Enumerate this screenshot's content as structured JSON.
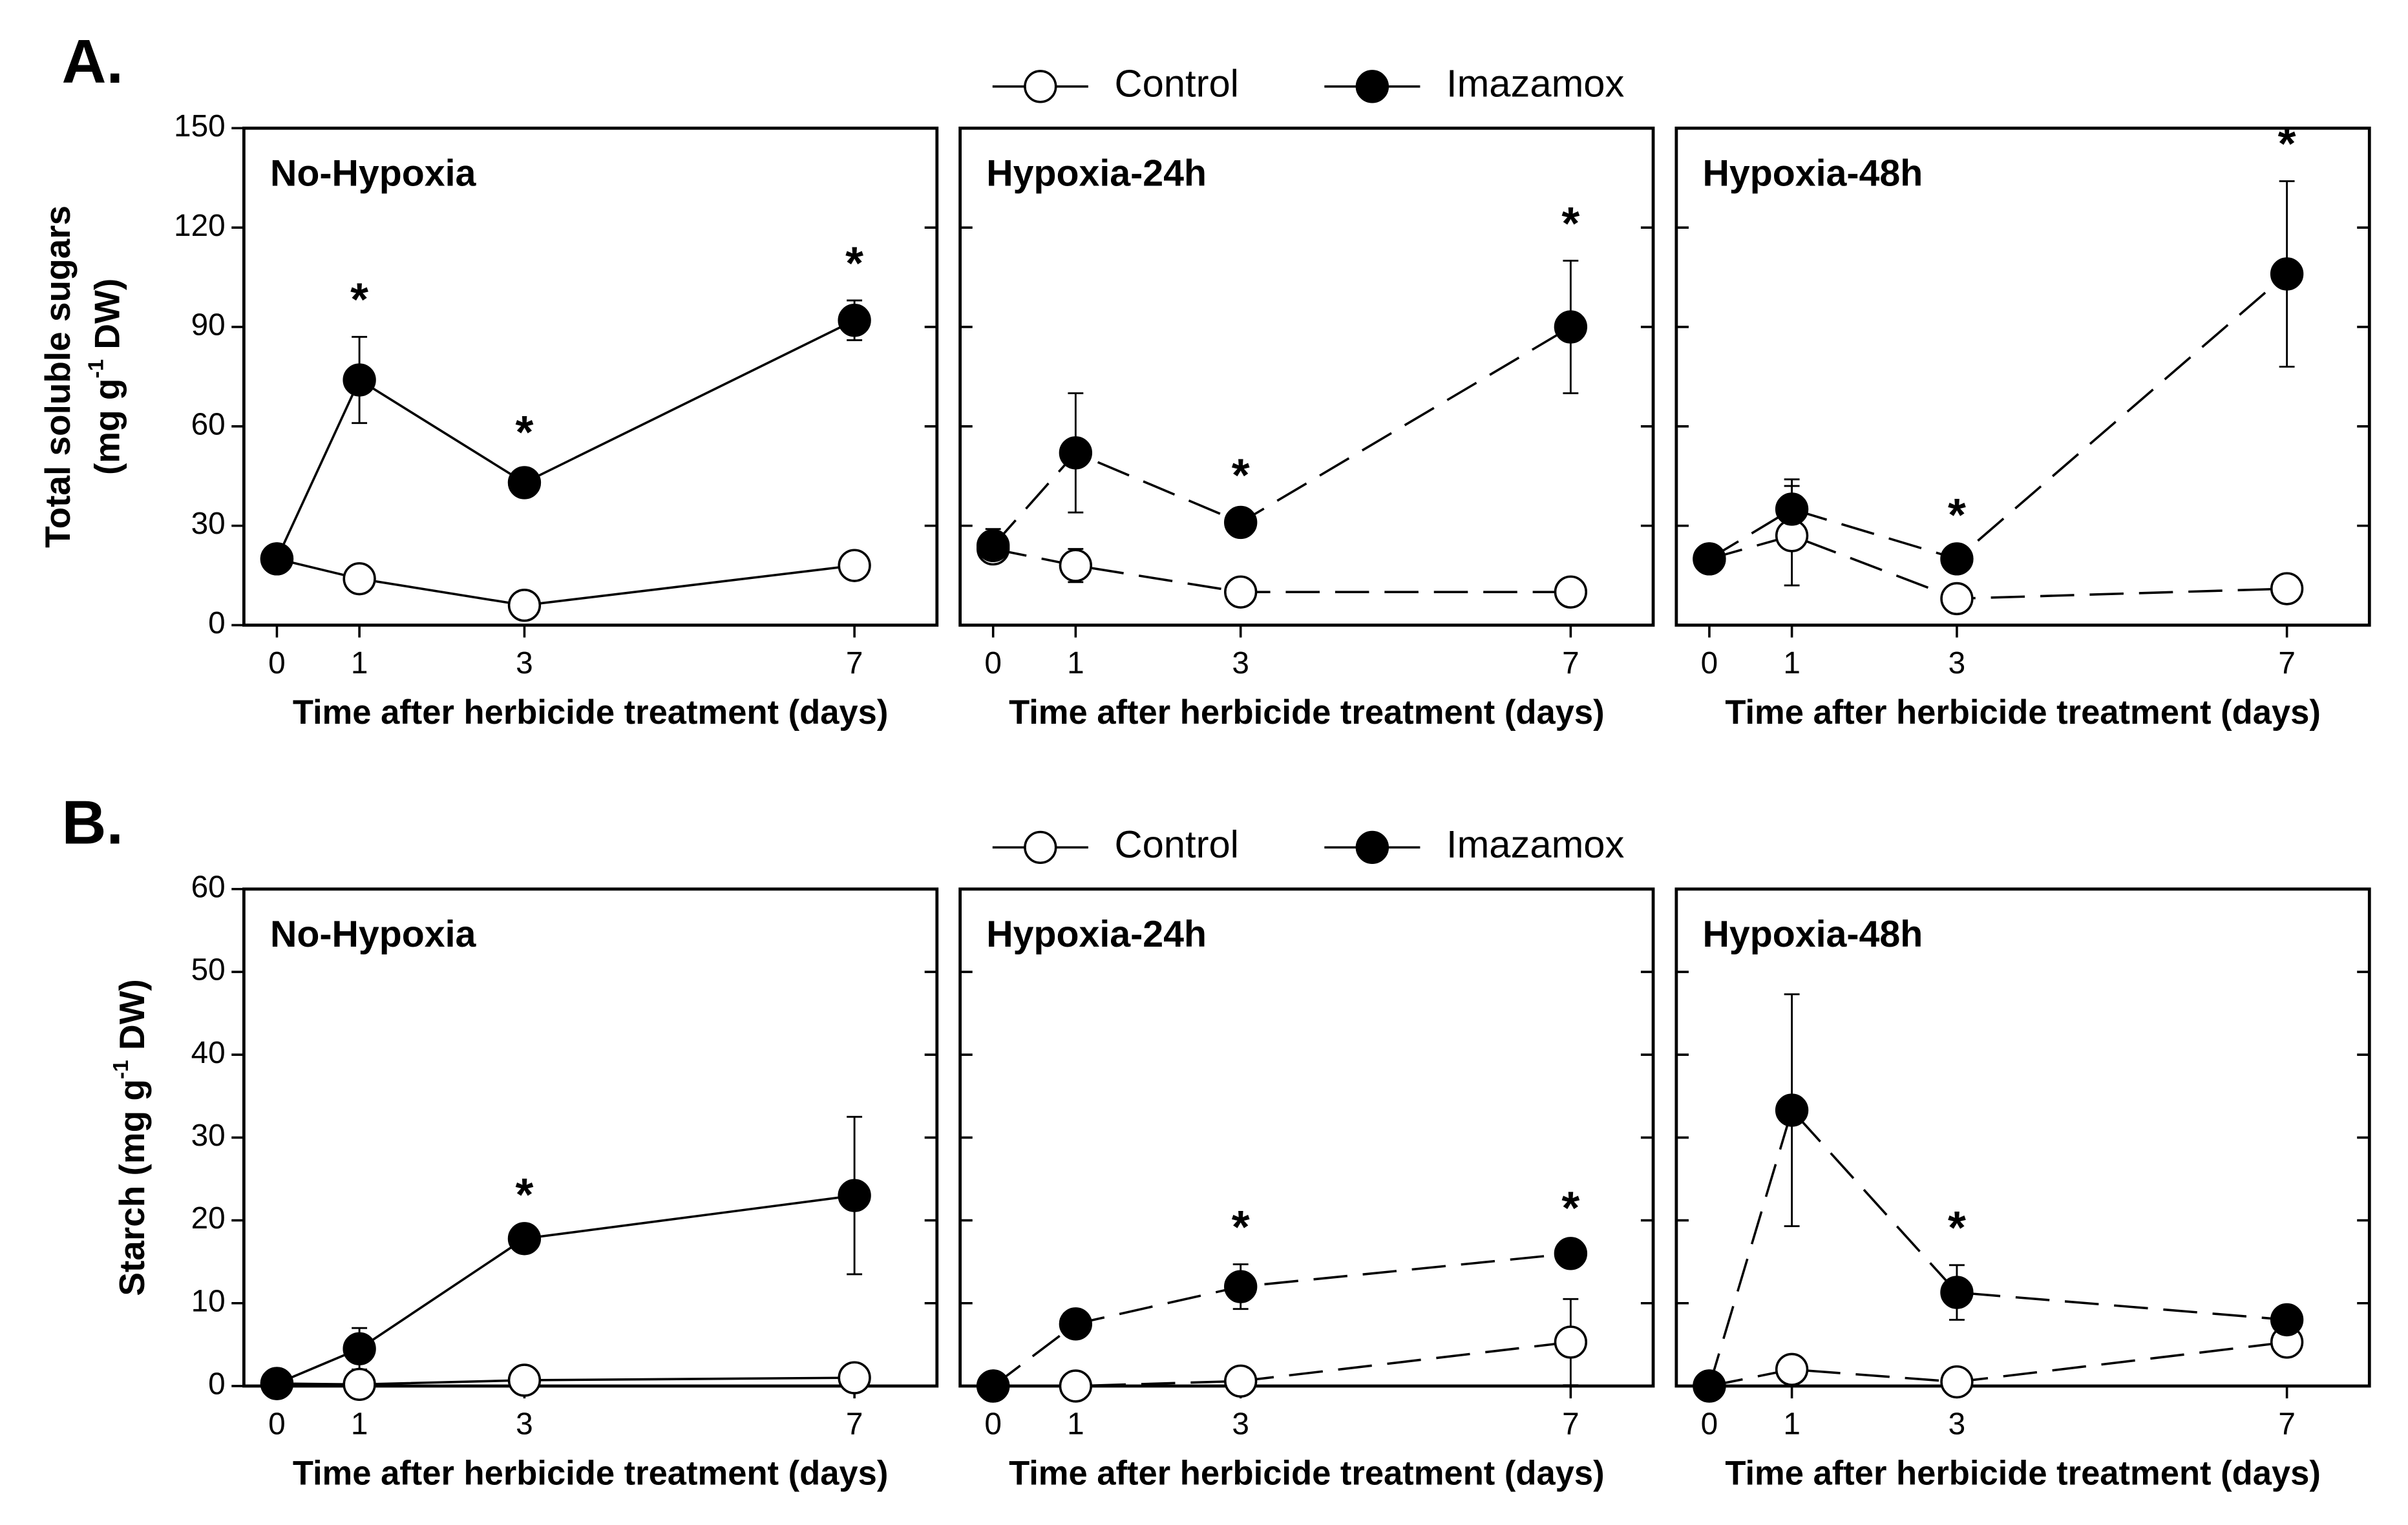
{
  "chart_data": [
    {
      "type": "line",
      "label": "A.",
      "ylabel_lines": [
        [
          {
            "text": "Total soluble sugars"
          }
        ],
        [
          {
            "text": "(mg g"
          },
          {
            "text": "-1",
            "sup": true
          },
          {
            "text": " DW)"
          }
        ]
      ],
      "x": [
        0,
        1,
        3,
        7
      ],
      "xlim": [
        -0.4,
        8
      ],
      "xticks": [
        0,
        1,
        3,
        7
      ],
      "ylim": [
        0,
        150
      ],
      "yticks": [
        0,
        30,
        60,
        90,
        120,
        150
      ],
      "series": [
        {
          "name": "Control",
          "color": "#ffffff"
        },
        {
          "name": "Imazamox",
          "color": "#000000"
        }
      ],
      "panels": [
        {
          "title": "No-Hypoxia",
          "xlabel": "Time after herbicide treatment (days)",
          "series": [
            {
              "values": [
                20,
                14,
                6,
                18
              ],
              "errors": [
                2,
                2,
                1,
                2
              ],
              "dashed": false
            },
            {
              "values": [
                20,
                74,
                43,
                92
              ],
              "errors": [
                2,
                13,
                4,
                6
              ],
              "dashed": false
            }
          ],
          "annotations": [
            {
              "x": 1,
              "text": "*"
            },
            {
              "x": 3,
              "text": "*"
            },
            {
              "x": 7,
              "text": "*"
            }
          ]
        },
        {
          "title": "Hypoxia-24h",
          "xlabel": "Time after herbicide treatment (days)",
          "series": [
            {
              "values": [
                23,
                18,
                10,
                10
              ],
              "errors": [
                3,
                5,
                2,
                2
              ],
              "dashed": true
            },
            {
              "values": [
                24,
                52,
                31,
                90
              ],
              "errors": [
                5,
                18,
                3,
                20
              ],
              "dashed": true
            }
          ],
          "annotations": [
            {
              "x": 3,
              "text": "*"
            },
            {
              "x": 7,
              "text": "*"
            }
          ]
        },
        {
          "title": "Hypoxia-48h",
          "xlabel": "Time after herbicide treatment (days)",
          "series": [
            {
              "values": [
                20,
                27,
                8,
                11
              ],
              "errors": [
                3,
                15,
                2,
                2
              ],
              "dashed": true
            },
            {
              "values": [
                20,
                35,
                20,
                106
              ],
              "errors": [
                3,
                9,
                2,
                28
              ],
              "dashed": true
            }
          ],
          "annotations": [
            {
              "x": 3,
              "text": "*"
            },
            {
              "x": 7,
              "text": "*"
            }
          ]
        }
      ]
    },
    {
      "type": "line",
      "label": "B.",
      "ylabel_lines": [
        [
          {
            "text": "Starch (mg g"
          },
          {
            "text": "-1",
            "sup": true
          },
          {
            "text": " DW)"
          }
        ]
      ],
      "x": [
        0,
        1,
        3,
        7
      ],
      "xlim": [
        -0.4,
        8
      ],
      "xticks": [
        0,
        1,
        3,
        7
      ],
      "ylim": [
        0,
        60
      ],
      "yticks": [
        0,
        10,
        20,
        30,
        40,
        50,
        60
      ],
      "series": [
        {
          "name": "Control",
          "color": "#ffffff"
        },
        {
          "name": "Imazamox",
          "color": "#000000"
        }
      ],
      "panels": [
        {
          "title": "No-Hypoxia",
          "xlabel": "Time after herbicide treatment (days)",
          "series": [
            {
              "values": [
                0.3,
                0.2,
                0.7,
                1
              ],
              "errors": [
                0.2,
                0.2,
                0.3,
                0.4
              ],
              "dashed": false
            },
            {
              "values": [
                0.3,
                4.5,
                17.8,
                23
              ],
              "errors": [
                0.3,
                2.5,
                0.8,
                9.5
              ],
              "dashed": false
            }
          ],
          "annotations": [
            {
              "x": 3,
              "text": "*"
            }
          ]
        },
        {
          "title": "Hypoxia-24h",
          "xlabel": "Time after herbicide treatment (days)",
          "series": [
            {
              "values": [
                0,
                0,
                0.6,
                5.3
              ],
              "errors": [
                0,
                0,
                0.5,
                5.2
              ],
              "dashed": true
            },
            {
              "values": [
                0,
                7.5,
                12,
                16
              ],
              "errors": [
                0.3,
                0.8,
                2.7,
                1
              ],
              "dashed": true
            }
          ],
          "annotations": [
            {
              "x": 3,
              "text": "*"
            },
            {
              "x": 7,
              "text": "*"
            }
          ]
        },
        {
          "title": "Hypoxia-48h",
          "xlabel": "Time after herbicide treatment (days)",
          "series": [
            {
              "values": [
                0,
                2,
                0.5,
                5.3
              ],
              "errors": [
                0,
                1,
                0.5,
                1
              ],
              "dashed": true
            },
            {
              "values": [
                0,
                33.3,
                11.3,
                8
              ],
              "errors": [
                0.3,
                14,
                3.3,
                0.5
              ],
              "dashed": true
            }
          ],
          "annotations": [
            {
              "x": 3,
              "text": "*"
            }
          ]
        }
      ]
    }
  ]
}
